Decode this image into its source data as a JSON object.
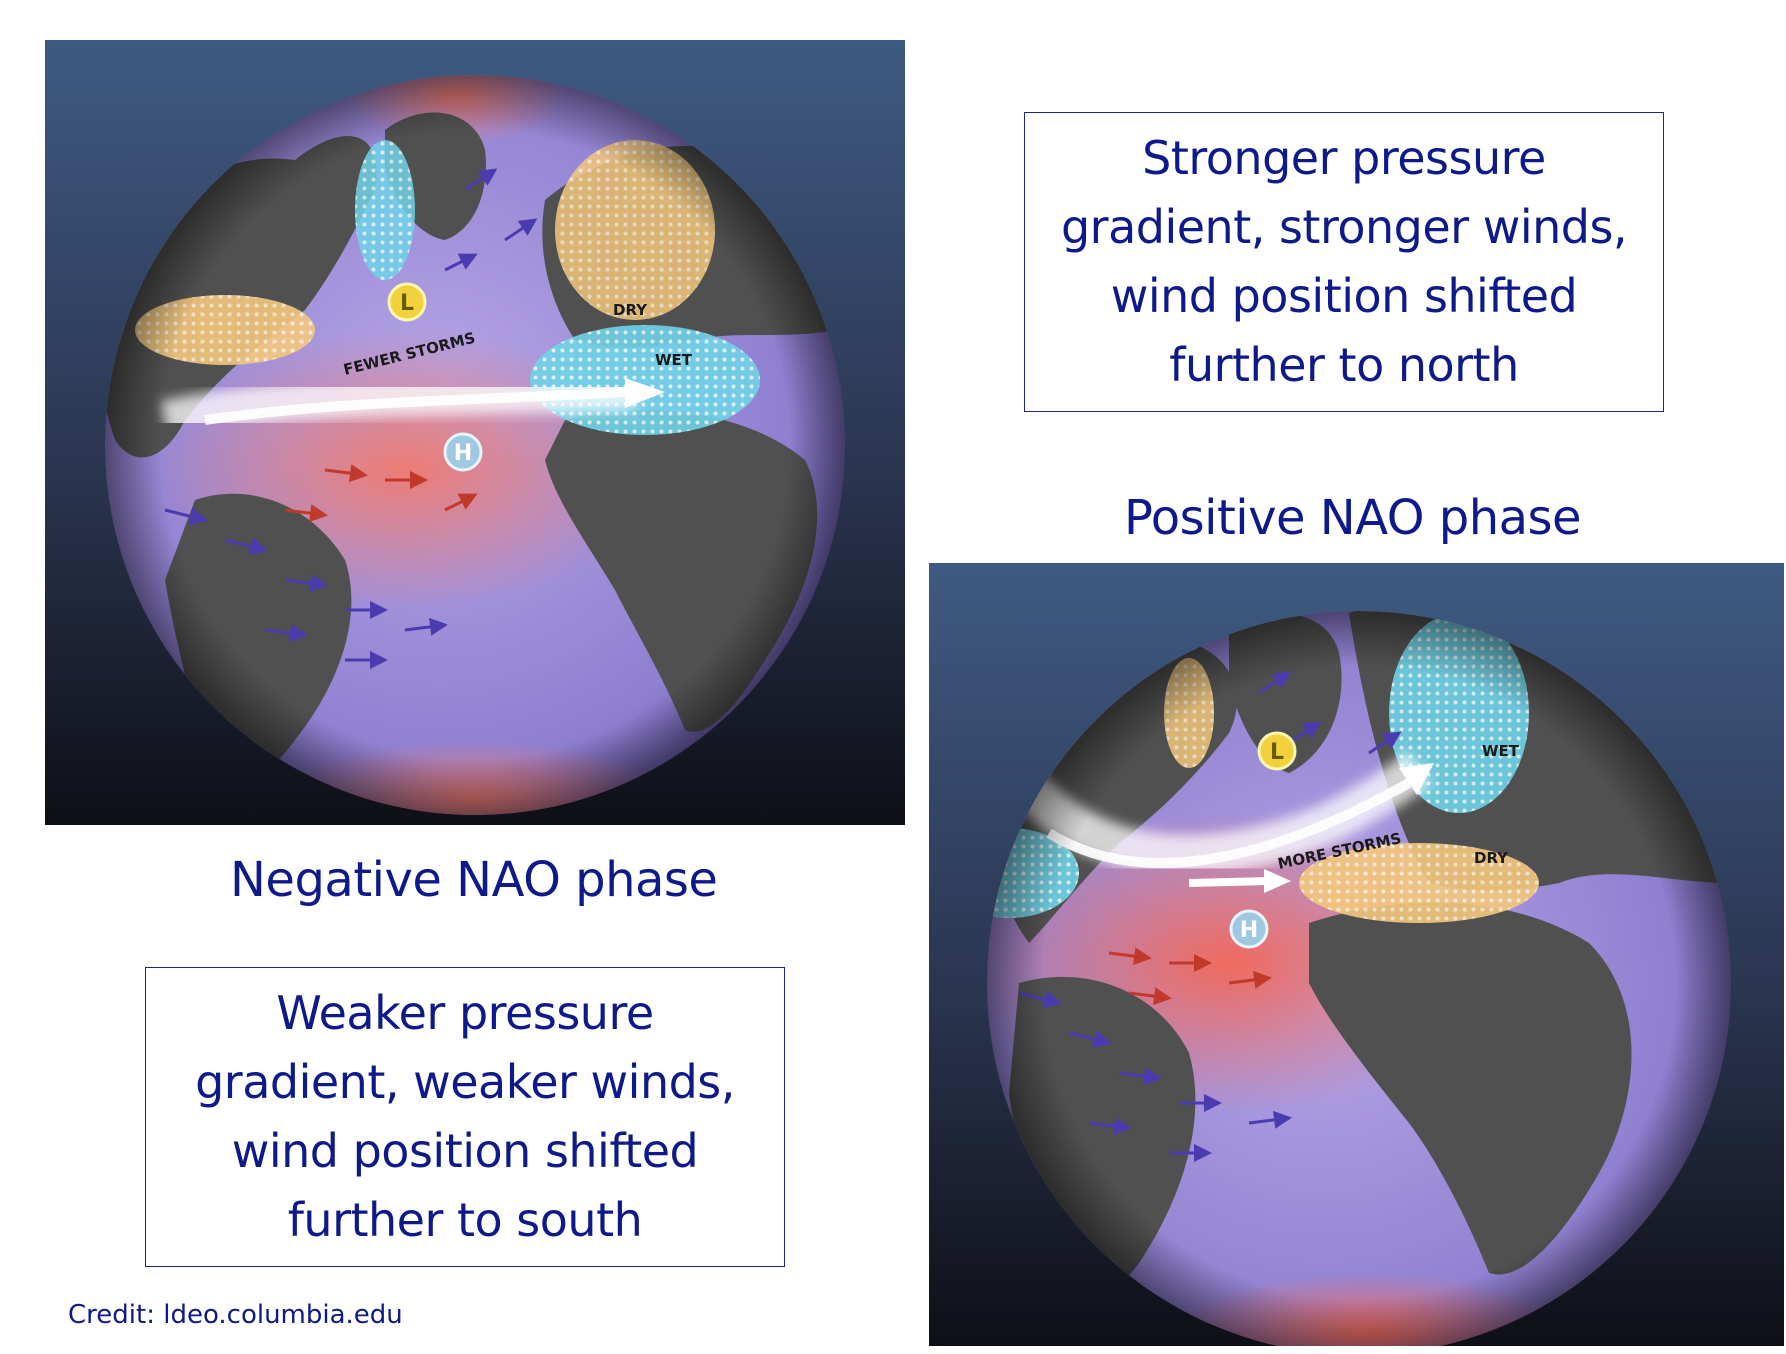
{
  "positive": {
    "description_lines": [
      "Stronger pressure",
      "gradient, stronger winds,",
      "wind position shifted",
      "further to north"
    ],
    "caption": "Positive NAO phase",
    "map_labels": {
      "storms": "MORE STORMS",
      "wet": "WET",
      "dry": "DRY",
      "low": "L",
      "high": "H"
    }
  },
  "negative": {
    "description_lines": [
      "Weaker pressure",
      "gradient, weaker winds,",
      "wind position shifted",
      "further to south"
    ],
    "caption": "Negative NAO phase",
    "map_labels": {
      "storms": "FEWER STORMS",
      "wet": "WET",
      "dry": "DRY",
      "low": "L",
      "high": "H"
    }
  },
  "credit": "Credit: ldeo.columbia.edu",
  "colors": {
    "text": "#0f1a8a",
    "ocean": "#9a8ad6",
    "land": "#505050",
    "warm": "#ef7a70",
    "wet": "#6fd3e8",
    "dry": "#f4c77c",
    "sky_top": "#3f5a82",
    "sky_bottom": "#0e0f16"
  }
}
